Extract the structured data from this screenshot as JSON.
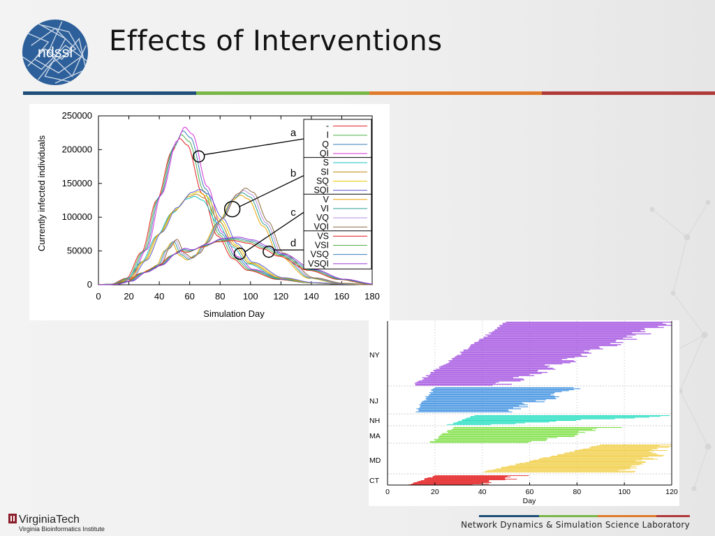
{
  "slide": {
    "title": "Effects of Interventions",
    "logo_text": "ndssl",
    "footer_org": "Network Dynamics & Simulation Science Laboratory",
    "footer_university": "VirginiaTech",
    "footer_institute": "Virginia Bioinformatics Institute",
    "rule_colors": [
      "#1f4e79",
      "#7ab648",
      "#e07b2a",
      "#b03a3a"
    ]
  },
  "chart_data": [
    {
      "type": "line",
      "xlabel": "Simulation Day",
      "ylabel": "Currently infected individuals",
      "xlim": [
        0,
        180
      ],
      "ylim": [
        0,
        250000
      ],
      "xticks": [
        0,
        20,
        40,
        60,
        80,
        100,
        120,
        140,
        160,
        180
      ],
      "yticks": [
        0,
        50000,
        100000,
        150000,
        200000,
        250000
      ],
      "legend_position": "top-right",
      "legend": [
        "-",
        "I",
        "Q",
        "QI",
        "S",
        "SI",
        "SQ",
        "SQI",
        "V",
        "VI",
        "VQ",
        "VQI",
        "VS",
        "VSI",
        "VSQ",
        "VSQI"
      ],
      "legend_colors": [
        "#e41a1c",
        "#4daf4a",
        "#377eb8",
        "#d62fd6",
        "#17c2c2",
        "#b8860b",
        "#e6c800",
        "#5a5ad6",
        "#e8a100",
        "#2a9d8f",
        "#b48ee0",
        "#8b6a3a",
        "#e41a1c",
        "#4daf4a",
        "#377eb8",
        "#9b30d6"
      ],
      "annotations": [
        {
          "label": "a",
          "x": 66,
          "y": 190000
        },
        {
          "label": "b",
          "x": 88,
          "y": 112000
        },
        {
          "label": "c",
          "x": 93,
          "y": 46000
        },
        {
          "label": "d",
          "x": 112,
          "y": 49000
        }
      ],
      "groups": [
        {
          "name": "a",
          "series": [
            0,
            1,
            2,
            3
          ],
          "x": [
            0,
            10,
            20,
            30,
            40,
            50,
            55,
            60,
            70,
            80,
            90,
            100,
            120,
            140,
            160,
            180
          ],
          "y": [
            0,
            1000,
            10000,
            50000,
            130000,
            205000,
            225000,
            215000,
            140000,
            75000,
            40000,
            22000,
            8000,
            3000,
            1000,
            0
          ]
        },
        {
          "name": "b",
          "series": [
            4,
            5,
            6,
            7
          ],
          "x": [
            0,
            10,
            20,
            30,
            40,
            50,
            60,
            65,
            70,
            80,
            90,
            100,
            120,
            140,
            160,
            180
          ],
          "y": [
            0,
            1000,
            8000,
            35000,
            75000,
            110000,
            132000,
            136000,
            130000,
            95000,
            58000,
            32000,
            10000,
            3000,
            1000,
            0
          ]
        },
        {
          "name": "c",
          "series": [
            8,
            9,
            10,
            11
          ],
          "x": [
            0,
            10,
            20,
            30,
            35,
            40,
            45,
            50,
            55,
            60,
            65,
            70,
            80,
            90,
            95,
            100,
            110,
            120,
            140,
            160,
            180
          ],
          "y": [
            0,
            500,
            5000,
            18000,
            23000,
            30000,
            52000,
            65000,
            45000,
            38000,
            45000,
            60000,
            95000,
            130000,
            138000,
            132000,
            90000,
            45000,
            10000,
            2000,
            0
          ]
        },
        {
          "name": "d",
          "series": [
            12,
            13,
            14,
            15
          ],
          "x": [
            0,
            10,
            20,
            30,
            40,
            50,
            55,
            60,
            70,
            80,
            90,
            100,
            110,
            120,
            140,
            160,
            180
          ],
          "y": [
            0,
            500,
            5000,
            18000,
            28000,
            45000,
            52000,
            50000,
            58000,
            66000,
            68000,
            64000,
            55000,
            44000,
            22000,
            8000,
            1000
          ]
        }
      ]
    },
    {
      "type": "bar",
      "orientation": "horizontal",
      "xlabel": "Day",
      "xlim": [
        0,
        120
      ],
      "xticks": [
        0,
        20,
        40,
        60,
        80,
        100,
        120
      ],
      "categories": [
        "NY",
        "NJ",
        "NH",
        "MA",
        "MD",
        "CT"
      ],
      "colors": [
        "#a14de0",
        "#3a8ee0",
        "#2ee0c4",
        "#7be040",
        "#f2d152",
        "#e84040"
      ],
      "ranges": [
        {
          "state": "NY",
          "start_min": 11,
          "start_max": 50,
          "end_min": 48,
          "end_max": 120,
          "count": 60
        },
        {
          "state": "NJ",
          "start_min": 12,
          "start_max": 20,
          "end_min": 48,
          "end_max": 83,
          "count": 25
        },
        {
          "state": "NH",
          "start_min": 26,
          "start_max": 36,
          "end_min": 45,
          "end_max": 120,
          "count": 12
        },
        {
          "state": "MA",
          "start_min": 18,
          "start_max": 28,
          "end_min": 62,
          "end_max": 94,
          "count": 16
        },
        {
          "state": "MD",
          "start_min": 40,
          "start_max": 90,
          "end_min": 100,
          "end_max": 120,
          "count": 35
        },
        {
          "state": "CT",
          "start_min": 9,
          "start_max": 20,
          "end_min": 40,
          "end_max": 56,
          "count": 14
        }
      ]
    }
  ]
}
